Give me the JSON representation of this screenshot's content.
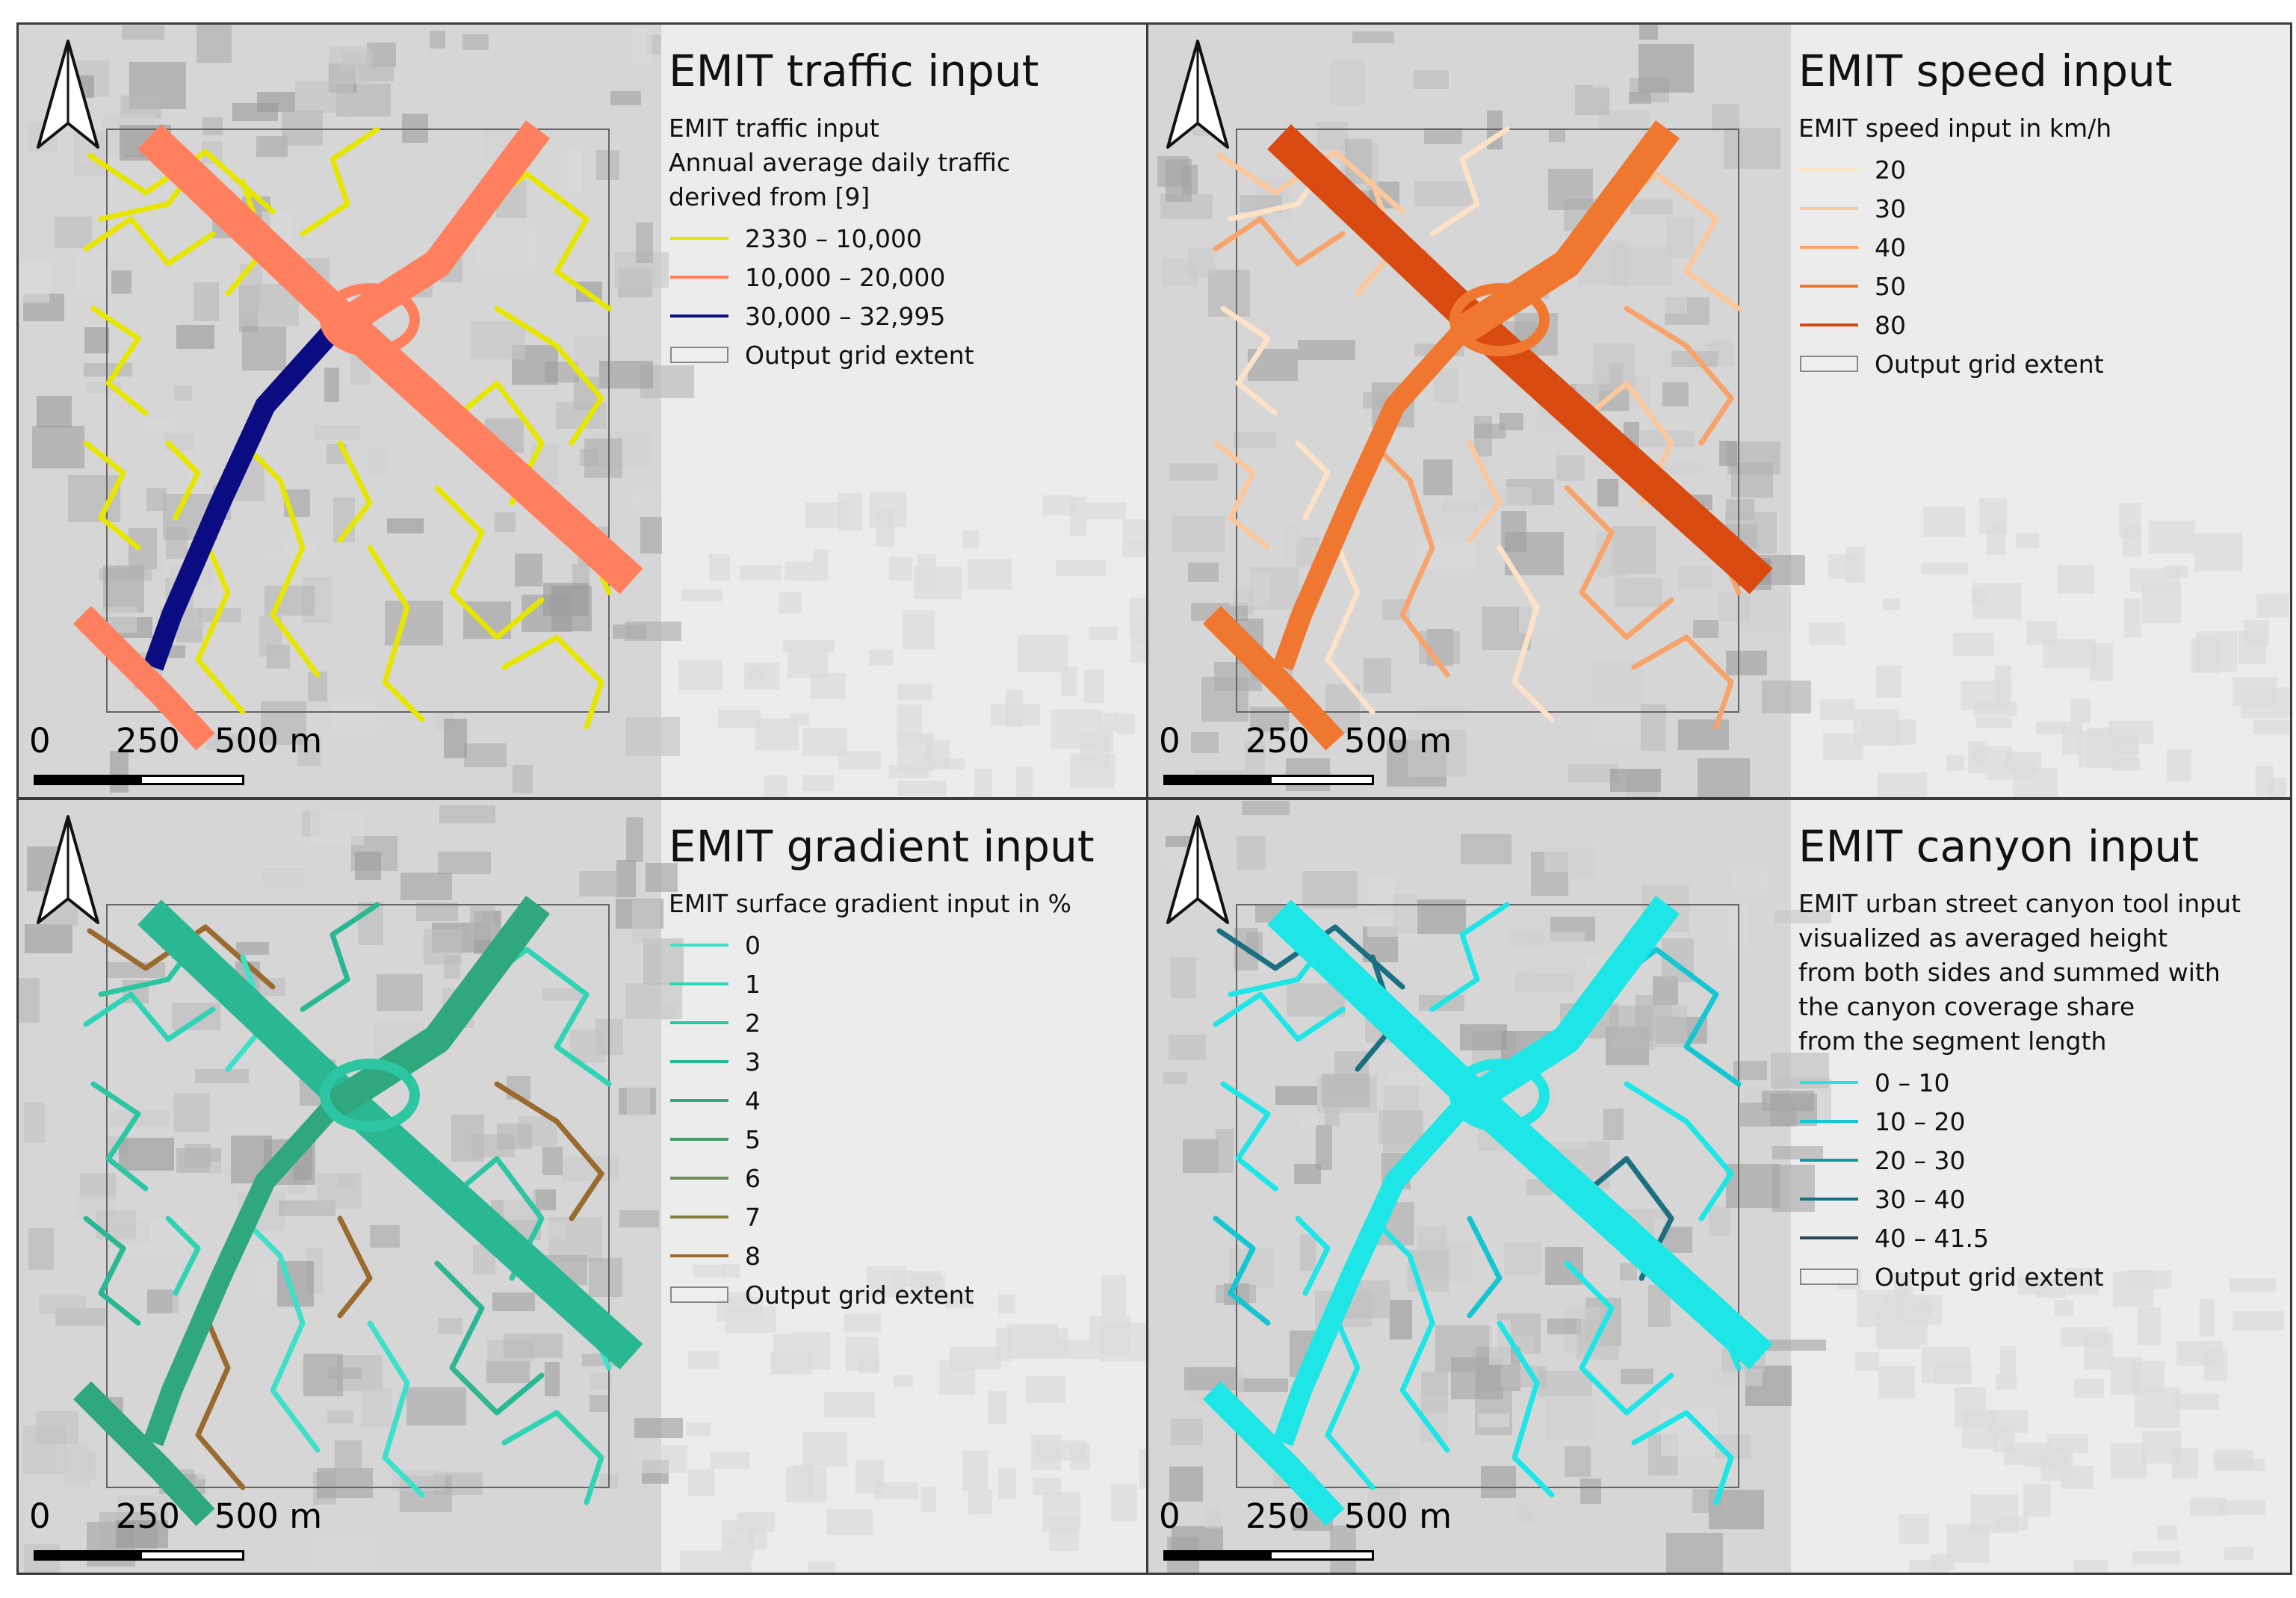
{
  "panels": [
    {
      "title": "EMIT traffic input",
      "caption": [
        "EMIT traffic input",
        "Annual average daily traffic",
        "derived from [9]"
      ],
      "legend": [
        {
          "label": "2330 – 10,000",
          "color": "#e6e600"
        },
        {
          "label": "10,000 – 20,000",
          "color": "#ff7f5e"
        },
        {
          "label": "30,000 – 32,995",
          "color": "#0b0b82"
        },
        {
          "label": "Output grid extent",
          "color": "box"
        }
      ],
      "scale": {
        "l0": "0",
        "l1": "250",
        "l2": "500 m"
      }
    },
    {
      "title": "EMIT speed input",
      "caption": [
        "EMIT speed input in km/h"
      ],
      "legend": [
        {
          "label": "20",
          "color": "#fde2c8"
        },
        {
          "label": "30",
          "color": "#fbc79c"
        },
        {
          "label": "40",
          "color": "#f7a36b"
        },
        {
          "label": "50",
          "color": "#f0772f"
        },
        {
          "label": "80",
          "color": "#d84a10"
        },
        {
          "label": "Output grid extent",
          "color": "box"
        }
      ],
      "scale": {
        "l0": "0",
        "l1": "250",
        "l2": "500 m"
      }
    },
    {
      "title": "EMIT gradient input",
      "caption": [
        "EMIT surface gradient input in %"
      ],
      "legend": [
        {
          "label": "0",
          "color": "#3de0c8"
        },
        {
          "label": "1",
          "color": "#2fd4b4"
        },
        {
          "label": "2",
          "color": "#2cc6a2"
        },
        {
          "label": "3",
          "color": "#2ab893"
        },
        {
          "label": "4",
          "color": "#2fa87e"
        },
        {
          "label": "5",
          "color": "#4a9b6e"
        },
        {
          "label": "6",
          "color": "#6b905a"
        },
        {
          "label": "7",
          "color": "#84833e"
        },
        {
          "label": "8",
          "color": "#9a6a2e"
        },
        {
          "label": "Output grid extent",
          "color": "box"
        }
      ],
      "scale": {
        "l0": "0",
        "l1": "250",
        "l2": "500 m"
      }
    },
    {
      "title": "EMIT canyon input",
      "caption": [
        "EMIT urban street canyon tool input",
        "visualized as averaged height",
        "from both sides and summed with",
        "the canyon coverage share",
        "from the segment length"
      ],
      "legend": [
        {
          "label": "0 – 10",
          "color": "#1ee6e6"
        },
        {
          "label": "10 – 20",
          "color": "#14c6d2"
        },
        {
          "label": "20 – 30",
          "color": "#139aa8"
        },
        {
          "label": "30 – 40",
          "color": "#1a6f80"
        },
        {
          "label": "40 – 41.5",
          "color": "#2a4858"
        },
        {
          "label": "Output grid extent",
          "color": "box"
        }
      ],
      "scale": {
        "l0": "0",
        "l1": "250",
        "l2": "500 m"
      }
    }
  ]
}
